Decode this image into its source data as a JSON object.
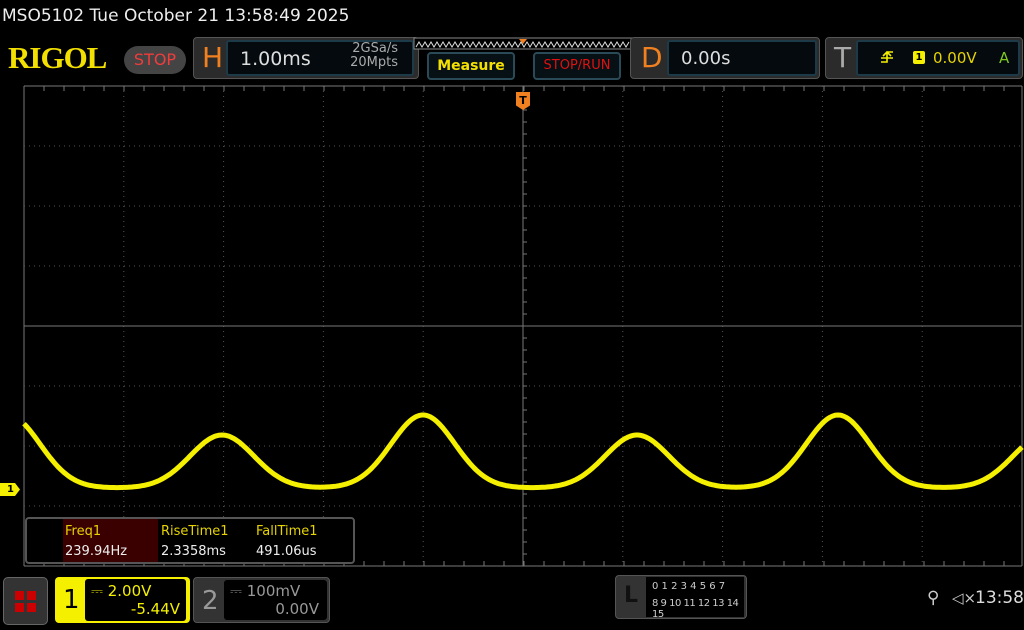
{
  "status": {
    "title": "MSO5102  Tue October 21 13:58:49 2025",
    "brand": "RIGOL",
    "run_state": "STOP"
  },
  "horizontal": {
    "letter": "H",
    "timebase": "1.00ms",
    "sample_rate": "2GSa/s",
    "memory_depth": "20Mpts"
  },
  "buttons": {
    "measure": "Measure",
    "stop_run": "STOP/RUN"
  },
  "delay": {
    "letter": "D",
    "value": "0.00s"
  },
  "trigger": {
    "letter": "T",
    "edge_icon": "rising-edge-icon",
    "source": "1",
    "level": "0.00V",
    "mode": "A"
  },
  "measurements": [
    {
      "label": "Freq1",
      "value": "239.94Hz"
    },
    {
      "label": "RiseTime1",
      "value": "2.3358ms"
    },
    {
      "label": "FallTime1",
      "value": "491.06us"
    }
  ],
  "channels": [
    {
      "num": "1",
      "scale": "2.00V",
      "offset": "-5.44V",
      "color": "#f5f000",
      "active": true
    },
    {
      "num": "2",
      "scale": "100mV",
      "offset": "0.00V",
      "color": "#888888",
      "active": false
    }
  ],
  "logic": {
    "letter": "L",
    "row1": "0 1 2 3  4 5 6 7",
    "row2": "8 9 10 11 12 13 14 15"
  },
  "system": {
    "usb_icon": "usb-icon",
    "mute_icon": "speaker-muted-icon",
    "clock": "13:58"
  },
  "markers": {
    "trigger_pos": "T",
    "ch1_ground": "1"
  }
}
